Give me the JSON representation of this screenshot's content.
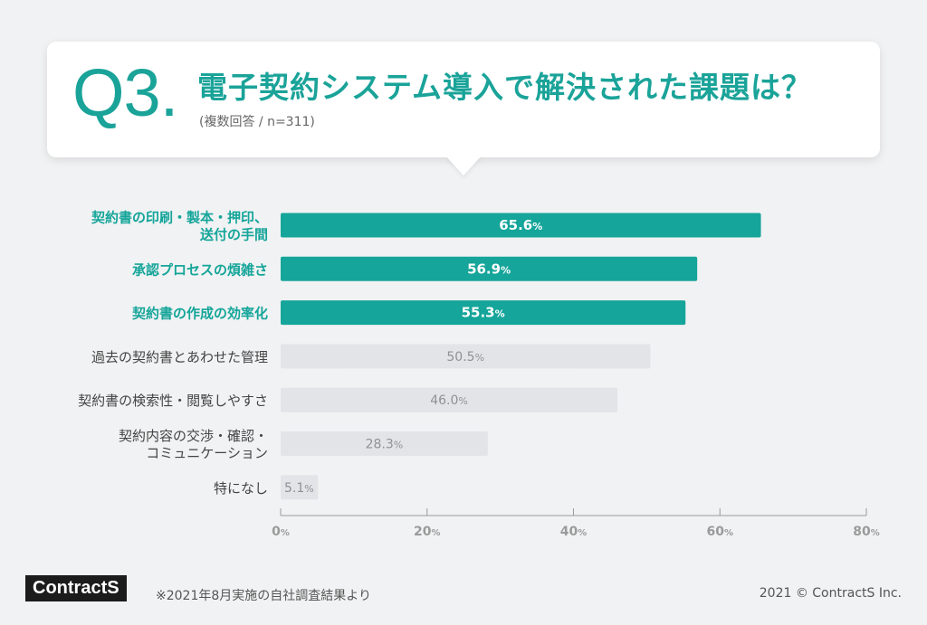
{
  "header": {
    "question_number": "Q3.",
    "title": "電子契約システム導入で解決された課題は？",
    "subtitle": "(複数回答 / n=311)"
  },
  "chart_data": {
    "type": "bar",
    "orientation": "horizontal",
    "categories": [
      [
        "契約書の印刷・製本・押印、",
        "送付の手間"
      ],
      [
        "承認プロセスの煩雑さ"
      ],
      [
        "契約書の作成の効率化"
      ],
      [
        "過去の契約書とあわせた管理"
      ],
      [
        "契約書の検索性・閲覧しやすさ"
      ],
      [
        "契約内容の交渉・確認・",
        "コミュニケーション"
      ],
      [
        "特になし"
      ]
    ],
    "values": [
      65.6,
      56.9,
      55.3,
      50.5,
      46.0,
      28.3,
      5.1
    ],
    "value_labels": [
      "65.6",
      "56.9",
      "55.3",
      "50.5",
      "46.0",
      "28.3",
      "5.1"
    ],
    "value_suffix": "%",
    "highlighted": [
      true,
      true,
      true,
      false,
      false,
      false,
      false
    ],
    "xlim": [
      0,
      80
    ],
    "xticks": [
      0,
      20,
      40,
      60,
      80
    ],
    "xtick_labels": [
      "0",
      "20",
      "40",
      "60",
      "80"
    ],
    "xtick_suffix": "%",
    "grid": false,
    "colors": {
      "highlight": "#15a59a",
      "normal": "#e2e4e8",
      "highlight_label": "#ffffff",
      "normal_label": "#8e9196",
      "highlight_category": "#15a59a",
      "normal_category": "#444444",
      "axis": "#9a9a9a"
    }
  },
  "footer": {
    "logo": "ContractS",
    "note": "※2021年8月実施の自社調査結果より",
    "copyright": "2021 © ContractS Inc."
  },
  "colors": {
    "accent": "#1aa399",
    "background": "#f1f2f3"
  }
}
